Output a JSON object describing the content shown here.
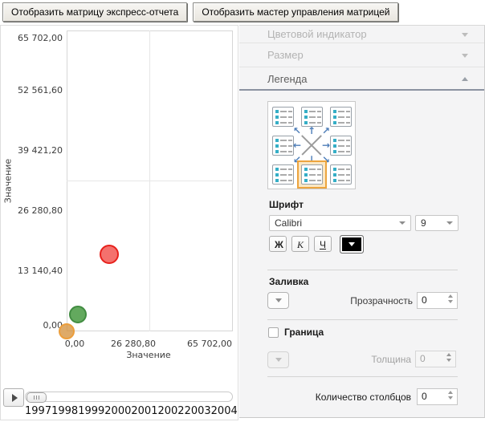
{
  "toolbar": {
    "btn_express": "Отобразить матрицу экспресс-отчета",
    "btn_master": "Отобразить мастер управления матрицей"
  },
  "sidebar": {
    "sections": [
      {
        "label": "Цветовой индикатор",
        "state": "collapsed",
        "enabled": false
      },
      {
        "label": "Размер",
        "state": "collapsed",
        "enabled": false
      },
      {
        "label": "Легенда",
        "state": "expanded",
        "enabled": true
      }
    ],
    "legend_position": {
      "selected": "bottom-center",
      "arrow_icons": {
        "up_left": "↖",
        "up": "↑",
        "up_right": "↗",
        "left": "←",
        "right": "→",
        "down_left": "↙",
        "down": "↓",
        "down_right": "↘"
      }
    },
    "font": {
      "label": "Шрифт",
      "family": "Calibri",
      "size": "9",
      "bold_label": "Ж",
      "italic_label": "К",
      "underline_label": "Ч"
    },
    "fill": {
      "label": "Заливка",
      "transparency_label": "Прозрачность",
      "transparency_value": "0"
    },
    "border": {
      "label": "Граница",
      "checked": false,
      "thickness_label": "Толщина",
      "thickness_value": "0"
    },
    "columns": {
      "label": "Количество столбцов",
      "value": "0"
    }
  },
  "colors": {
    "selection_orange": "#eca43e",
    "arrow_blue": "#4d7db8",
    "legend_swatch_teal": "#35aec6"
  },
  "chart_data": {
    "type": "scatter",
    "xlabel": "Значение",
    "ylabel": "Значение",
    "xlim": [
      0,
      65702
    ],
    "ylim": [
      0,
      65702
    ],
    "x_ticks": [
      "0,00",
      "26 280,80",
      "65 702,00"
    ],
    "y_ticks_top_to_bottom": [
      "65 702,00",
      "52 561,60",
      "39 421,20",
      "26 280,80",
      "13 140,40",
      "0,00"
    ],
    "grid": "center-cross",
    "legend_position": "hidden",
    "points": [
      {
        "name": "red-bubble",
        "x": 16800,
        "y": 16800,
        "r": 12,
        "fill": "#f4716d",
        "stroke": "#e7211c"
      },
      {
        "name": "green-bubble",
        "x": 4400,
        "y": 3700,
        "r": 11,
        "fill": "#63a95e",
        "stroke": "#418c41"
      },
      {
        "name": "orange-bubble",
        "x": 0,
        "y": 0,
        "r": 10,
        "fill": "rgba(213,146,62,0.78)",
        "stroke": "#ec9e3c"
      }
    ],
    "timeline_years": [
      "1997",
      "1998",
      "1999",
      "2000",
      "2001",
      "2002",
      "2003",
      "2004"
    ]
  }
}
